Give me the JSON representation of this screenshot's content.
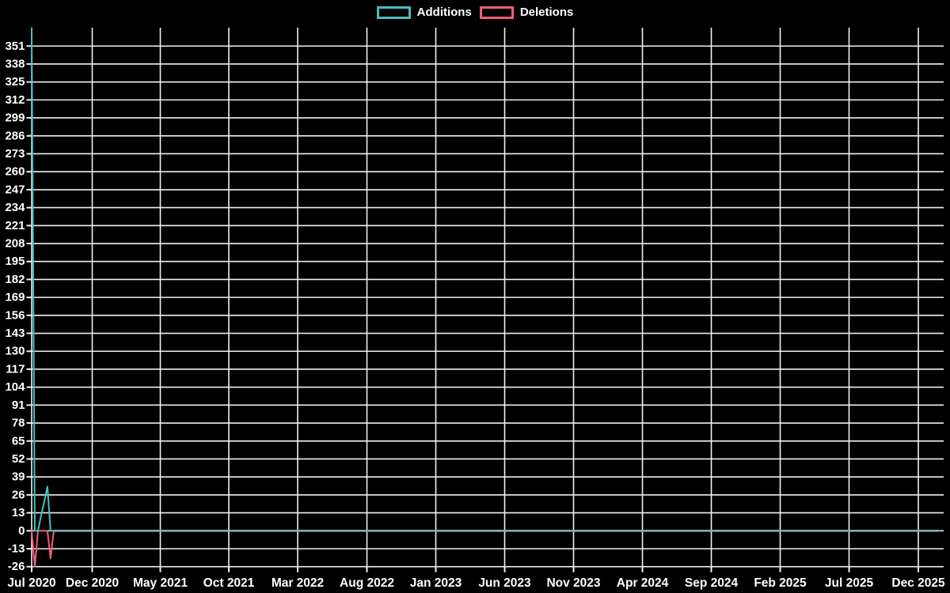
{
  "legend": {
    "items": [
      {
        "label": "Additions",
        "color": "#49bebe"
      },
      {
        "label": "Deletions",
        "color": "#f25d78"
      }
    ]
  },
  "chart_data": {
    "type": "line",
    "title": "",
    "xlabel": "",
    "ylabel": "",
    "background": "#000000",
    "text_color": "#ffffff",
    "grid": true,
    "grid_color": "#f0f0f0",
    "legend_position": "top",
    "x_axis": {
      "unit": "weeks, starting Jul 2020",
      "n_points": 289,
      "tick_labels": [
        "Jul 2020",
        "Dec 2020",
        "May 2021",
        "Oct 2021",
        "Mar 2022",
        "Aug 2022",
        "Jan 2023",
        "Jun 2023",
        "Nov 2023",
        "Apr 2024",
        "Sep 2024",
        "Feb 2025",
        "Jul 2025",
        "Dec 2025"
      ]
    },
    "y_axis": {
      "min": -26,
      "max": 364,
      "tick_step": 13,
      "tick_labels": [
        "351",
        "338",
        "325",
        "312",
        "299",
        "286",
        "273",
        "260",
        "247",
        "234",
        "221",
        "208",
        "195",
        "182",
        "169",
        "156",
        "143",
        "130",
        "117",
        "104",
        "91",
        "78",
        "65",
        "52",
        "39",
        "26",
        "13",
        "0",
        "-13",
        "-26"
      ]
    },
    "series": [
      {
        "name": "Additions",
        "color": "#49bebe",
        "points_head": [
          364,
          0,
          0,
          11,
          21,
          32,
          0,
          0
        ],
        "fill_rest": 0,
        "n_points": 289
      },
      {
        "name": "Deletions",
        "color": "#f25d78",
        "points_head": [
          0,
          -26,
          0,
          0,
          0,
          0,
          -20,
          0
        ],
        "fill_rest": 0,
        "n_points": 289
      }
    ],
    "zero_overlap_line_color": "#7fafb7"
  }
}
